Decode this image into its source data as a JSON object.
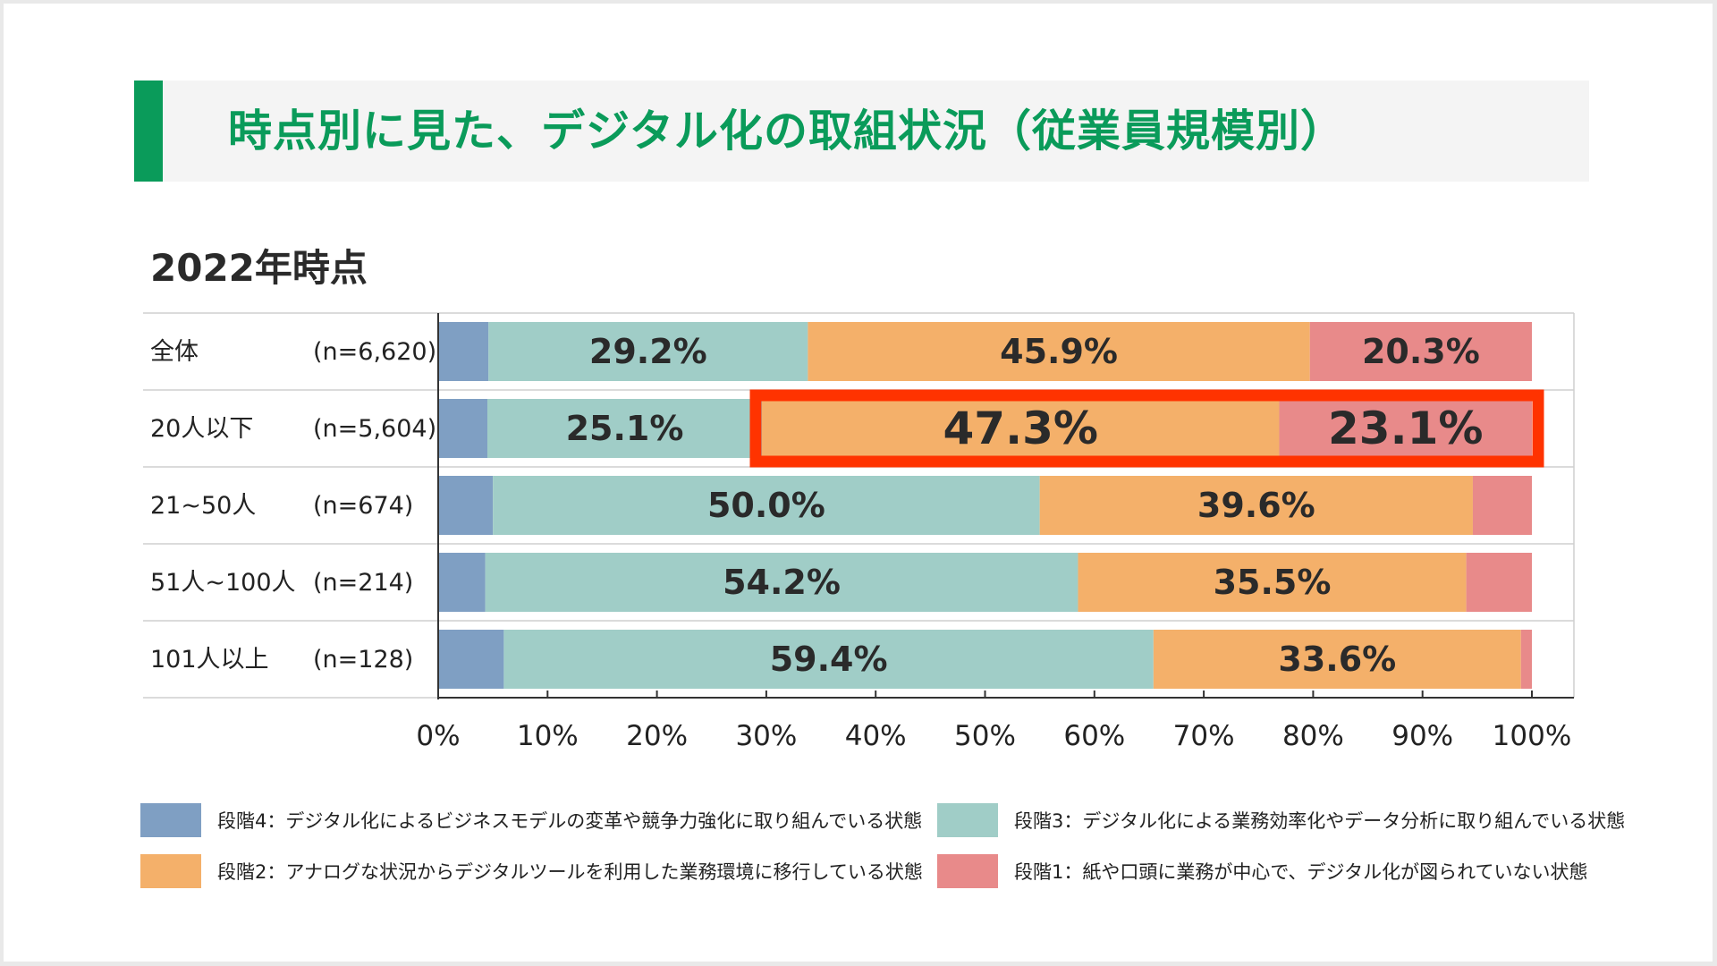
{
  "title": "時点別に見た、デジタル化の取組状況（従業員規模別）",
  "subtitle": "2022年時点",
  "colors": {
    "title": "#0a9b5a",
    "stage4": "#7f9fc3",
    "stage3": "#a0cdc7",
    "stage2": "#f4b06a",
    "stage1": "#e88a8a",
    "highlight": "#ff3300"
  },
  "chart_data": {
    "type": "bar",
    "orientation": "horizontal",
    "stacked": true,
    "categories": [
      "全体",
      "20人以下",
      "21~50人",
      "51人~100人",
      "101人以上"
    ],
    "sample_sizes": [
      "(n=6,620)",
      "(n=5,604)",
      "(n=674)",
      "(n=214)",
      "(n=128)"
    ],
    "series": [
      {
        "name": "段階4：デジタル化によるビジネスモデルの変革や競争力強化に取り組んでいる状態",
        "color_key": "stage4",
        "values": [
          4.6,
          4.5,
          5.0,
          4.3,
          6.0
        ]
      },
      {
        "name": "段階3：デジタル化による業務効率化やデータ分析に取り組んでいる状態",
        "color_key": "stage3",
        "values": [
          29.2,
          25.1,
          50.0,
          54.2,
          59.4
        ]
      },
      {
        "name": "段階2：アナログな状況からデジタルツールを利用した業務環境に移行している状態",
        "color_key": "stage2",
        "values": [
          45.9,
          47.3,
          39.6,
          35.5,
          33.6
        ]
      },
      {
        "name": "段階1：紙や口頭に業務が中心で、デジタル化が図られていない状態",
        "color_key": "stage1",
        "values": [
          20.3,
          23.1,
          5.4,
          6.0,
          1.0
        ]
      }
    ],
    "data_labels": [
      [
        null,
        "29.2%",
        "45.9%",
        "20.3%"
      ],
      [
        null,
        "25.1%",
        "47.3%",
        "23.1%"
      ],
      [
        null,
        "50.0%",
        "39.6%",
        null
      ],
      [
        null,
        "54.2%",
        "35.5%",
        null
      ],
      [
        null,
        "59.4%",
        "33.6%",
        null
      ]
    ],
    "highlight": {
      "row": 1,
      "series": [
        2,
        3
      ]
    },
    "xlim": [
      0,
      100
    ],
    "xticks": [
      "0%",
      "10%",
      "20%",
      "30%",
      "40%",
      "50%",
      "60%",
      "70%",
      "80%",
      "90%",
      "100%"
    ],
    "legend_position": "bottom"
  }
}
